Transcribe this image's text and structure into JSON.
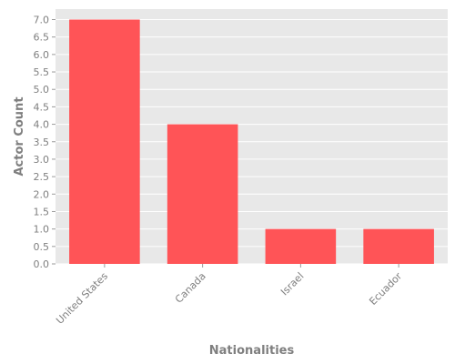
{
  "chart_data": {
    "type": "bar",
    "categories": [
      "United States",
      "Canada",
      "Israel",
      "Ecuador"
    ],
    "values": [
      7,
      4,
      1,
      1
    ],
    "title": "",
    "xlabel": "Nationalities",
    "ylabel": "Actor Count",
    "ylim": [
      0,
      7.3
    ],
    "yticks": [
      "0.0",
      "0.5",
      "1.0",
      "1.5",
      "2.0",
      "2.5",
      "3.0",
      "3.5",
      "4.0",
      "4.5",
      "5.0",
      "5.5",
      "6.0",
      "6.5",
      "7.0"
    ],
    "grid": true,
    "legend": "none",
    "colors": {
      "bar": "#ff5457",
      "plot_background": "#e8e8e8",
      "grid": "#ffffff",
      "text": "#7f7f7f"
    }
  }
}
